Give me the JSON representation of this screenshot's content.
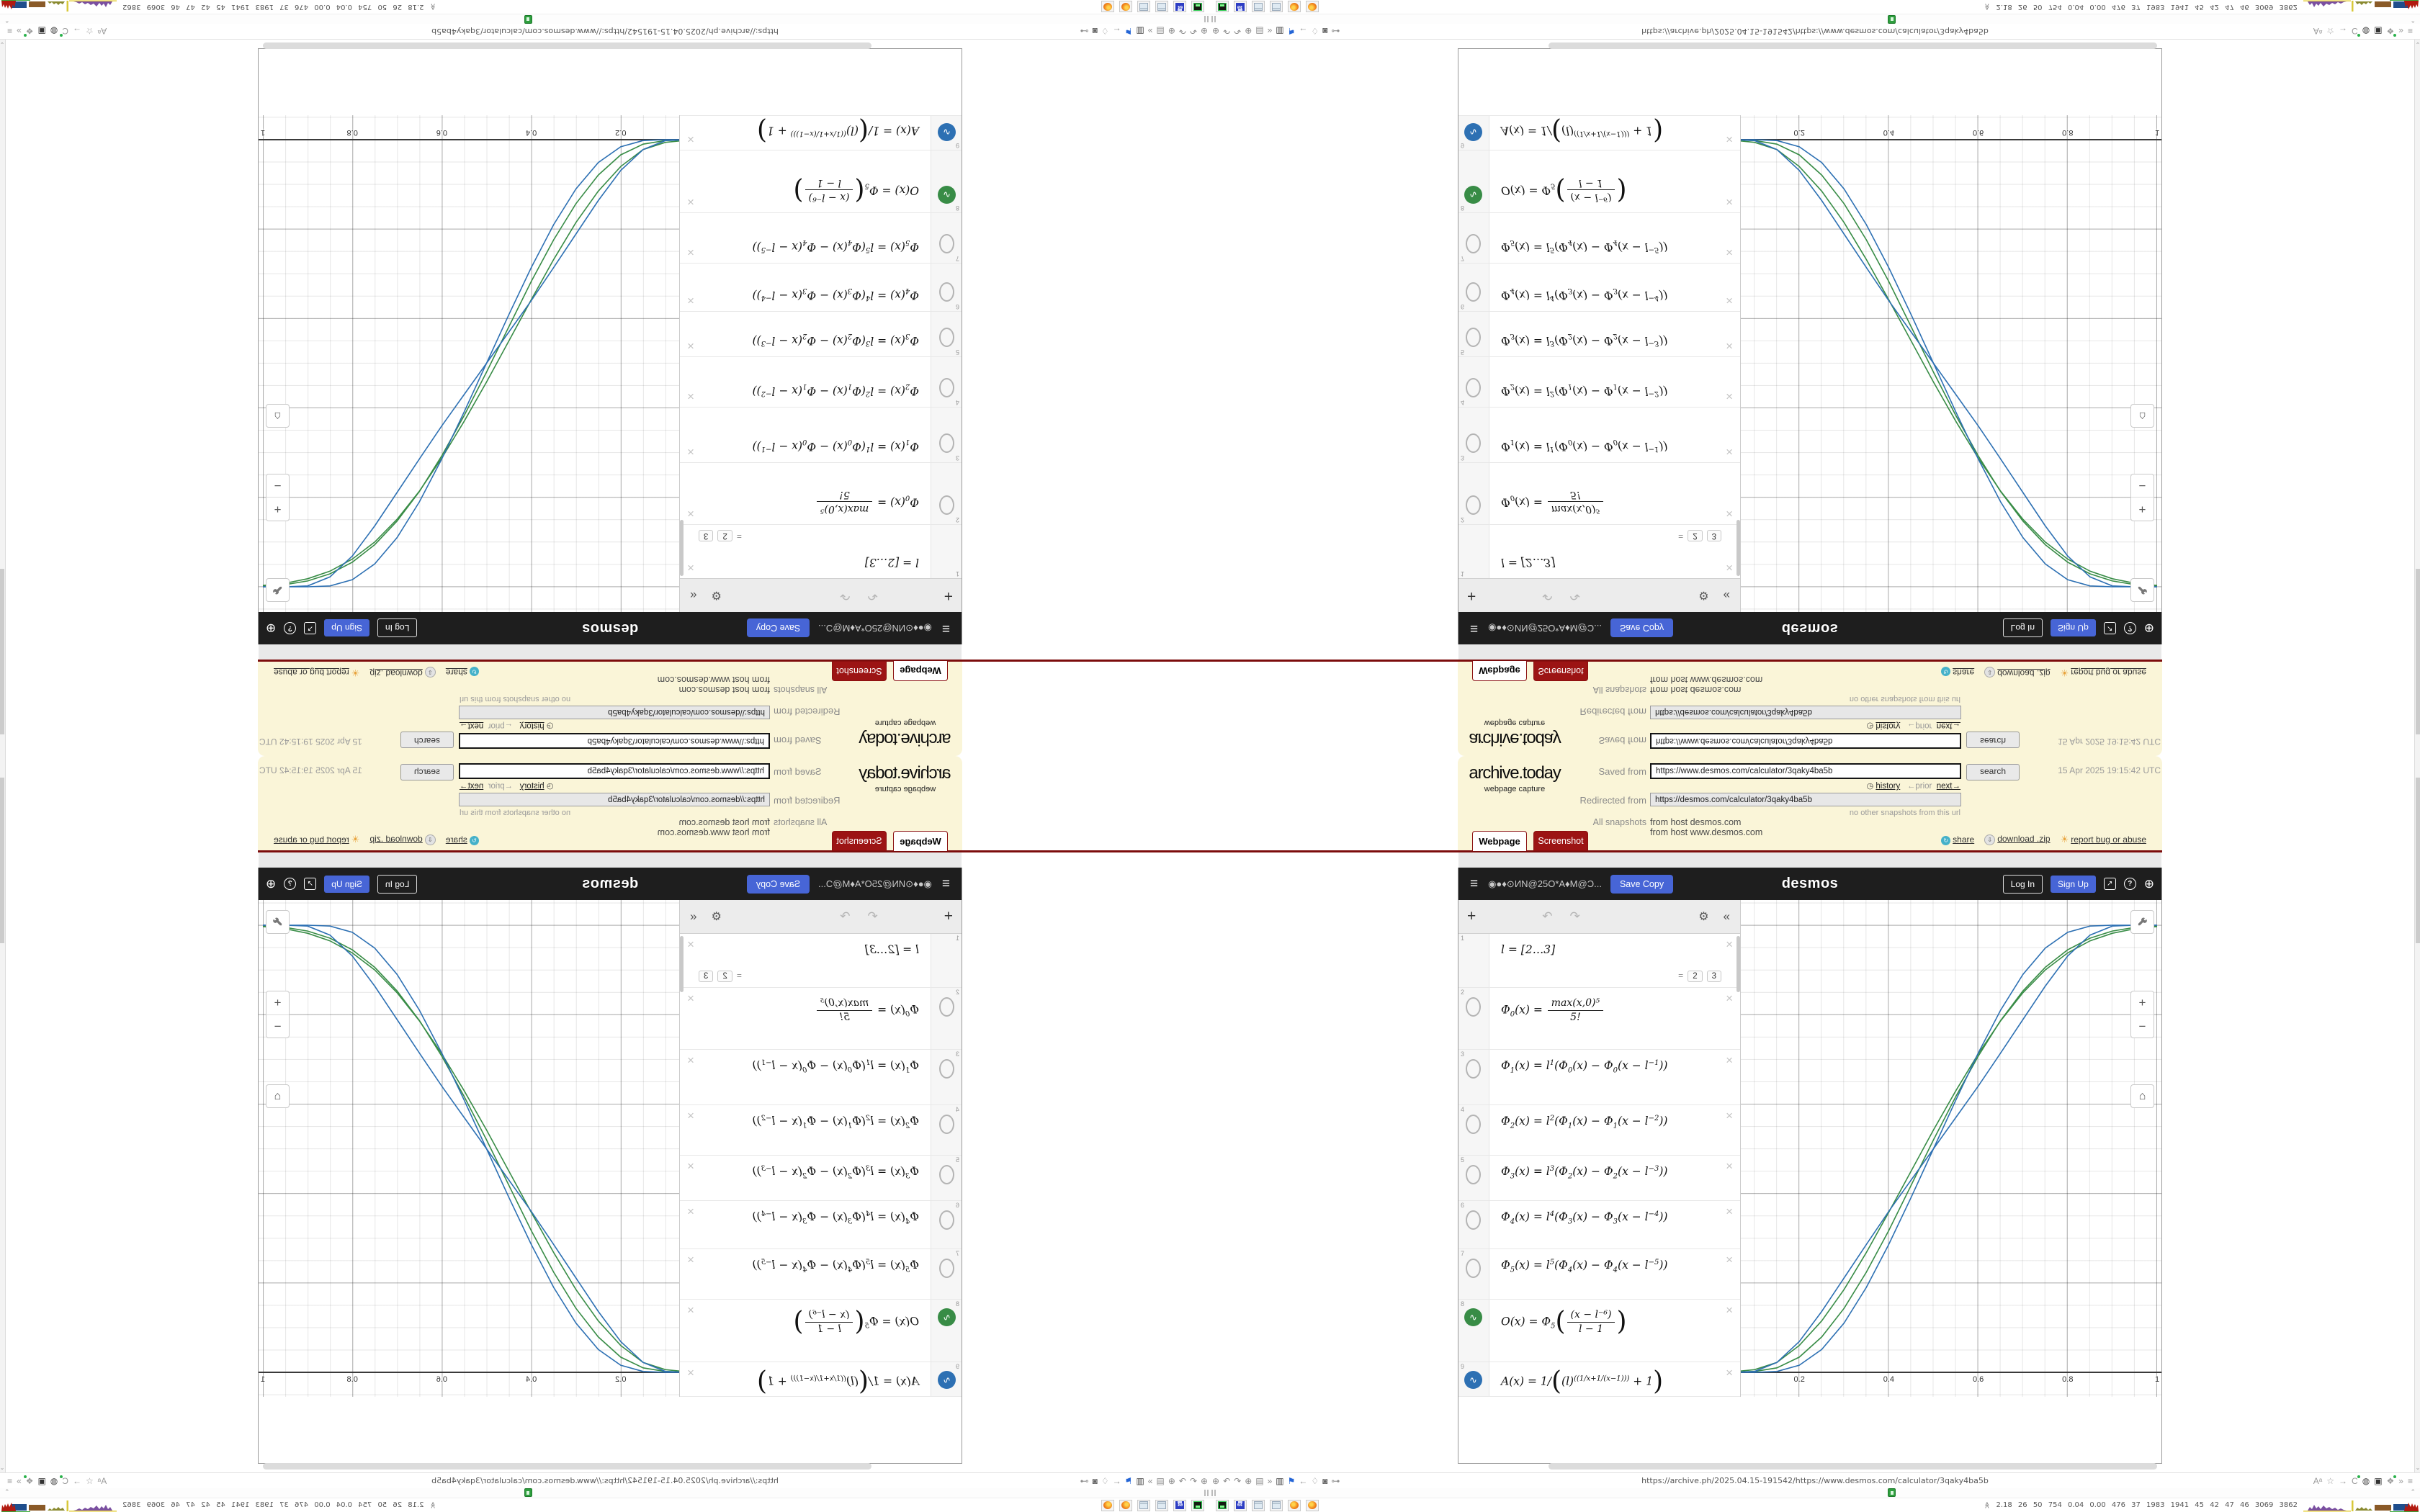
{
  "archive": {
    "logo": "archive.today",
    "logo_sub": "webpage capture",
    "saved_from_label": "Saved from",
    "saved_url": "https://www.desmos.com/calculator/3qaky4ba5b",
    "search_label": "search",
    "timestamp": "15 Apr 2025 19:15:42 UTC",
    "history_label": "history",
    "prior_label": "←prior",
    "next_label": "next→",
    "redirected_from_label": "Redirected from",
    "redirected_url": "https://desmos.com/calculator/3qaky4ba5b",
    "no_other_label": "no other snapshots from this url",
    "all_snapshots_label": "All snapshots",
    "host_links": [
      "from host desmos.com",
      "from host www.desmos.com"
    ],
    "tabs": [
      {
        "label": "Webpage"
      },
      {
        "label": "Screenshot"
      }
    ],
    "links": [
      {
        "label": "share"
      },
      {
        "label": "download .zip"
      },
      {
        "label": "report bug or abuse"
      }
    ]
  },
  "desmos": {
    "title": "◉●♦⊙ИN@25O*A♦M@Ɔ...",
    "save_copy": "Save Copy",
    "logo": "desmos",
    "log_in": "Log In",
    "sign_up": "Sign Up",
    "expressions": [
      {
        "n": "1",
        "icon": "none",
        "parts": [
          [
            "t",
            "l = [2…3]"
          ]
        ],
        "preview_eq": "=",
        "preview_chips": [
          "2",
          "3"
        ]
      },
      {
        "n": "2",
        "icon": "hidden",
        "parts": [
          [
            "t",
            "Φ"
          ],
          [
            "b",
            "0"
          ],
          [
            "t",
            "(x) = "
          ],
          [
            "f",
            "max(x,0)⁵",
            "5!"
          ]
        ]
      },
      {
        "n": "3",
        "icon": "hidden",
        "parts": [
          [
            "t",
            "Φ"
          ],
          [
            "b",
            "1"
          ],
          [
            "t",
            "(x) = l"
          ],
          [
            "s",
            "1"
          ],
          [
            "t",
            "(Φ"
          ],
          [
            "b",
            "0"
          ],
          [
            "t",
            "(x) − Φ"
          ],
          [
            "b",
            "0"
          ],
          [
            "t",
            "(x − l"
          ],
          [
            "s",
            "−1"
          ],
          [
            "t",
            "))"
          ]
        ]
      },
      {
        "n": "4",
        "icon": "hidden",
        "parts": [
          [
            "t",
            "Φ"
          ],
          [
            "b",
            "2"
          ],
          [
            "t",
            "(x) = l"
          ],
          [
            "s",
            "2"
          ],
          [
            "t",
            "(Φ"
          ],
          [
            "b",
            "1"
          ],
          [
            "t",
            "(x) − Φ"
          ],
          [
            "b",
            "1"
          ],
          [
            "t",
            "(x − l"
          ],
          [
            "s",
            "−2"
          ],
          [
            "t",
            "))"
          ]
        ]
      },
      {
        "n": "5",
        "icon": "hidden",
        "parts": [
          [
            "t",
            "Φ"
          ],
          [
            "b",
            "3"
          ],
          [
            "t",
            "(x) = l"
          ],
          [
            "s",
            "3"
          ],
          [
            "t",
            "(Φ"
          ],
          [
            "b",
            "2"
          ],
          [
            "t",
            "(x) − Φ"
          ],
          [
            "b",
            "2"
          ],
          [
            "t",
            "(x − l"
          ],
          [
            "s",
            "−3"
          ],
          [
            "t",
            "))"
          ]
        ]
      },
      {
        "n": "6",
        "icon": "hidden",
        "parts": [
          [
            "t",
            "Φ"
          ],
          [
            "b",
            "4"
          ],
          [
            "t",
            "(x) = l"
          ],
          [
            "s",
            "4"
          ],
          [
            "t",
            "(Φ"
          ],
          [
            "b",
            "3"
          ],
          [
            "t",
            "(x) − Φ"
          ],
          [
            "b",
            "3"
          ],
          [
            "t",
            "(x − l"
          ],
          [
            "s",
            "−4"
          ],
          [
            "t",
            "))"
          ]
        ]
      },
      {
        "n": "7",
        "icon": "hidden",
        "parts": [
          [
            "t",
            "Φ"
          ],
          [
            "b",
            "5"
          ],
          [
            "t",
            "(x) = l"
          ],
          [
            "s",
            "5"
          ],
          [
            "t",
            "(Φ"
          ],
          [
            "b",
            "4"
          ],
          [
            "t",
            "(x) − Φ"
          ],
          [
            "b",
            "4"
          ],
          [
            "t",
            "(x − l"
          ],
          [
            "s",
            "−5"
          ],
          [
            "t",
            "))"
          ]
        ]
      },
      {
        "n": "8",
        "icon": "green",
        "parts": [
          [
            "t",
            "O(x) = Φ"
          ],
          [
            "b",
            "5"
          ],
          [
            "p",
            "("
          ],
          [
            "f",
            "(x − l⁻⁶)",
            "l − 1"
          ],
          [
            "p",
            ")"
          ]
        ]
      },
      {
        "n": "9",
        "icon": "blue",
        "parts": [
          [
            "t",
            "A(x) = 1/"
          ],
          [
            "p",
            "("
          ],
          [
            "t",
            "(l)"
          ],
          [
            "s",
            "((1/x+1/(x−1)))"
          ],
          [
            "t",
            " + 1"
          ],
          [
            "p",
            ")"
          ]
        ]
      }
    ]
  },
  "chart_data": {
    "type": "line",
    "title": "",
    "xlabel": "",
    "ylabel": "",
    "xlim": [
      0.07,
      1.005
    ],
    "ylim": [
      -0.055,
      1.056
    ],
    "xticks": [
      0.2,
      0.4,
      0.6,
      0.8,
      1
    ],
    "grid": true,
    "legend": "none",
    "x": [
      0.05,
      0.1,
      0.15,
      0.2,
      0.25,
      0.3,
      0.35,
      0.4,
      0.45,
      0.5,
      0.55,
      0.6,
      0.65,
      0.7,
      0.75,
      0.8,
      0.85,
      0.9,
      0.95,
      1.0
    ],
    "series": [
      {
        "name": "O(x), l=2",
        "color": "#388c46",
        "values": [
          0.001,
          0.006,
          0.022,
          0.06,
          0.115,
          0.185,
          0.268,
          0.358,
          0.45,
          0.542,
          0.63,
          0.712,
          0.786,
          0.849,
          0.9,
          0.938,
          0.965,
          0.982,
          0.992,
          0.997
        ]
      },
      {
        "name": "O(x), l=3",
        "color": "#388c46",
        "values": [
          0.0,
          0.002,
          0.01,
          0.034,
          0.079,
          0.143,
          0.224,
          0.317,
          0.418,
          0.52,
          0.617,
          0.707,
          0.787,
          0.853,
          0.906,
          0.945,
          0.971,
          0.987,
          0.995,
          0.998
        ]
      },
      {
        "name": "A(x), l=2",
        "color": "#2d70b3",
        "values": [
          0.0,
          0.002,
          0.022,
          0.069,
          0.136,
          0.211,
          0.286,
          0.36,
          0.43,
          0.5,
          0.57,
          0.64,
          0.714,
          0.789,
          0.864,
          0.931,
          0.978,
          0.998,
          1.0,
          1.0
        ]
      },
      {
        "name": "A(x), l=3",
        "color": "#2d70b3",
        "values": [
          0.0,
          0.0,
          0.002,
          0.016,
          0.051,
          0.11,
          0.19,
          0.286,
          0.391,
          0.5,
          0.609,
          0.714,
          0.81,
          0.89,
          0.949,
          0.984,
          0.998,
          1.0,
          1.0,
          1.0
        ]
      }
    ]
  },
  "browser": {
    "url": "https://archive.ph/2025.04.15-191542/https://www.desmos.com/calculator/3qaky4ba5b",
    "left_icons": [
      {
        "name": "page-globe-icon",
        "g": "⊕"
      },
      {
        "name": "undo-rotate-icon",
        "g": "↶"
      },
      {
        "name": "redo-rotate-icon",
        "g": "↷"
      },
      {
        "name": "globe-icon",
        "g": "⊕"
      },
      {
        "name": "folder-icon",
        "g": "▤"
      },
      {
        "name": "overflow-chevrons-icon",
        "g": "»"
      },
      {
        "name": "trash-icon",
        "g": "▥",
        "color": "#444"
      },
      {
        "name": "bookmark-flag-icon",
        "g": "⚑",
        "color": "#2465d6"
      },
      {
        "name": "back-arrow-icon",
        "g": "←"
      },
      {
        "name": "shield-icon",
        "g": "♢"
      },
      {
        "name": "lock-icon",
        "g": "◙",
        "color": "#666"
      },
      {
        "name": "key-icon",
        "g": "⊶"
      }
    ],
    "right_icons": [
      {
        "name": "translate-icon",
        "g": "Aᵃ"
      },
      {
        "name": "star-icon",
        "g": "☆"
      },
      {
        "name": "forward-arrow-icon",
        "g": "→"
      },
      {
        "name": "reload-icon",
        "g": "C",
        "dot": true
      },
      {
        "name": "globe-dark-icon",
        "g": "◍",
        "color": "#444"
      },
      {
        "name": "shield-badge-icon",
        "g": "▣",
        "color": "#333"
      },
      {
        "name": "puzzle-extension-icon",
        "g": "❖",
        "dot": true
      },
      {
        "name": "more-chevrons-icon",
        "g": "»"
      },
      {
        "name": "menu-icon",
        "g": "≡"
      }
    ],
    "tab_chevron": "⌃",
    "scroll_chevron": "⌄"
  },
  "taskbar": {
    "apps": [
      {
        "name": "terminal-app-icon",
        "kind": "terminal"
      },
      {
        "name": "floppy-64-app-icon",
        "kind": "floppy-64"
      },
      {
        "name": "notes-app-icon",
        "kind": "notes"
      },
      {
        "name": "notes-app-icon-2",
        "kind": "notes"
      },
      {
        "name": "firefox-app-icon",
        "kind": "firefox"
      },
      {
        "name": "firefox-app-icon-2",
        "kind": "firefox"
      }
    ],
    "monitor_text": "2.18  26  50  754  0.04 0.00  476  37  1983 1941  45  42  47  46  3069 3862"
  },
  "colors": {
    "desmos_blue": "#2d70b3",
    "desmos_green": "#388c46",
    "brand_blue": "#4765d6",
    "archive_yellow": "#faf5d8",
    "tab_red": "#9c1414",
    "line_red": "#7c0c0c"
  }
}
